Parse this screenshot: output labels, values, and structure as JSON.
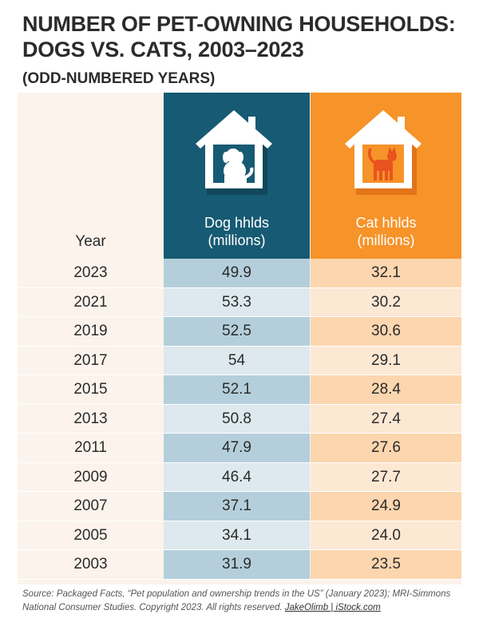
{
  "title_line1": "NUMBER OF PET-OWNING HOUSEHOLDS:",
  "title_line2": "DOGS VS. CATS, 2003–2023",
  "subtitle": "(ODD-NUMBERED YEARS)",
  "colors": {
    "dog_header": "#175a73",
    "cat_header": "#f69329",
    "dog_cell_dark": "#b4cfdb",
    "dog_cell_light": "#dde9ee",
    "cat_cell_dark": "#fcd6ae",
    "cat_cell_light": "#fde8d4",
    "year_cell": "#fbf3ec"
  },
  "icons": {
    "dog": "dog-house-icon",
    "cat": "cat-house-icon"
  },
  "chart_data": {
    "type": "table",
    "title": "NUMBER OF PET-OWNING HOUSEHOLDS: DOGS VS. CATS, 2003–2023",
    "subtitle": "(ODD-NUMBERED YEARS)",
    "columns": [
      "Year",
      "Dog hhlds (millions)",
      "Cat hhlds (millions)"
    ],
    "header_year": "Year",
    "header_dog_line1": "Dog hhlds",
    "header_dog_line2": "(millions)",
    "header_cat_line1": "Cat hhlds",
    "header_cat_line2": "(millions)",
    "rows": [
      {
        "year": "2023",
        "dog": "49.9",
        "cat": "32.1"
      },
      {
        "year": "2021",
        "dog": "53.3",
        "cat": "30.2"
      },
      {
        "year": "2019",
        "dog": "52.5",
        "cat": "30.6"
      },
      {
        "year": "2017",
        "dog": "54",
        "cat": "29.1"
      },
      {
        "year": "2015",
        "dog": "52.1",
        "cat": "28.4"
      },
      {
        "year": "2013",
        "dog": "50.8",
        "cat": "27.4"
      },
      {
        "year": "2011",
        "dog": "47.9",
        "cat": "27.6"
      },
      {
        "year": "2009",
        "dog": "46.4",
        "cat": "27.7"
      },
      {
        "year": "2007",
        "dog": "37.1",
        "cat": "24.9"
      },
      {
        "year": "2005",
        "dog": "34.1",
        "cat": "24.0"
      },
      {
        "year": "2003",
        "dog": "31.9",
        "cat": "23.5"
      }
    ]
  },
  "source_text": "Source: Packaged Facts, “Pet population and ownership trends in the US” (January 2023); MRI-Simmons National Consumer Studies. Copyright 2023. All rights reserved.",
  "credit": "JakeOlimb | iStock.com"
}
